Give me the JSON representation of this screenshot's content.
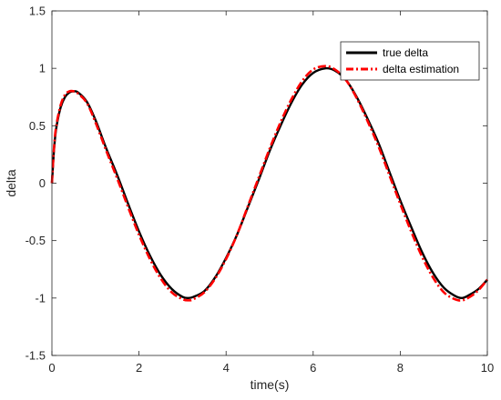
{
  "chart_data": {
    "type": "line",
    "title": "",
    "xlabel": "time(s)",
    "ylabel": "delta",
    "xlim": [
      0,
      10
    ],
    "ylim": [
      -1.5,
      1.5
    ],
    "xticks": [
      0,
      2,
      4,
      6,
      8,
      10
    ],
    "yticks": [
      -1.5,
      -1,
      -0.5,
      0,
      0.5,
      1,
      1.5
    ],
    "xtick_labels": [
      "0",
      "2",
      "4",
      "6",
      "8",
      "10"
    ],
    "ytick_labels": [
      "-1.5",
      "-1",
      "-0.5",
      "0",
      "0.5",
      "1",
      "1.5"
    ],
    "grid": false,
    "legend_position": "top-right",
    "x": [
      0,
      0.05,
      0.1,
      0.2,
      0.3,
      0.4,
      0.5,
      0.6,
      0.8,
      1.0,
      1.25,
      1.5,
      1.75,
      2.0,
      2.25,
      2.5,
      2.75,
      3.0,
      3.14,
      3.25,
      3.5,
      3.75,
      4.0,
      4.25,
      4.5,
      4.75,
      5.0,
      5.25,
      5.5,
      5.75,
      6.0,
      6.28,
      6.5,
      6.75,
      7.0,
      7.25,
      7.5,
      7.75,
      8.0,
      8.25,
      8.5,
      8.75,
      9.0,
      9.25,
      9.42,
      9.6,
      9.8,
      10.0
    ],
    "series": [
      {
        "name": "true delta",
        "color": "#000000",
        "style": "solid",
        "values": [
          0,
          0.3,
          0.48,
          0.66,
          0.75,
          0.79,
          0.8,
          0.79,
          0.71,
          0.55,
          0.3,
          0.07,
          -0.18,
          -0.42,
          -0.63,
          -0.8,
          -0.92,
          -0.99,
          -1.0,
          -0.99,
          -0.94,
          -0.82,
          -0.65,
          -0.45,
          -0.21,
          0.03,
          0.28,
          0.5,
          0.7,
          0.86,
          0.96,
          1.0,
          0.98,
          0.9,
          0.75,
          0.56,
          0.35,
          0.1,
          -0.15,
          -0.38,
          -0.6,
          -0.78,
          -0.91,
          -0.98,
          -1.0,
          -0.97,
          -0.92,
          -0.84
        ]
      },
      {
        "name": "delta estimation",
        "color": "#ff0000",
        "style": "dash-dot",
        "values": [
          0,
          0.32,
          0.5,
          0.68,
          0.77,
          0.8,
          0.8,
          0.78,
          0.7,
          0.53,
          0.28,
          0.04,
          -0.21,
          -0.45,
          -0.66,
          -0.83,
          -0.95,
          -1.01,
          -1.02,
          -1.01,
          -0.95,
          -0.83,
          -0.66,
          -0.45,
          -0.2,
          0.05,
          0.3,
          0.53,
          0.73,
          0.89,
          0.99,
          1.02,
          0.99,
          0.9,
          0.74,
          0.54,
          0.32,
          0.07,
          -0.18,
          -0.42,
          -0.64,
          -0.82,
          -0.95,
          -1.01,
          -1.02,
          -0.99,
          -0.93,
          -0.84
        ]
      }
    ]
  }
}
